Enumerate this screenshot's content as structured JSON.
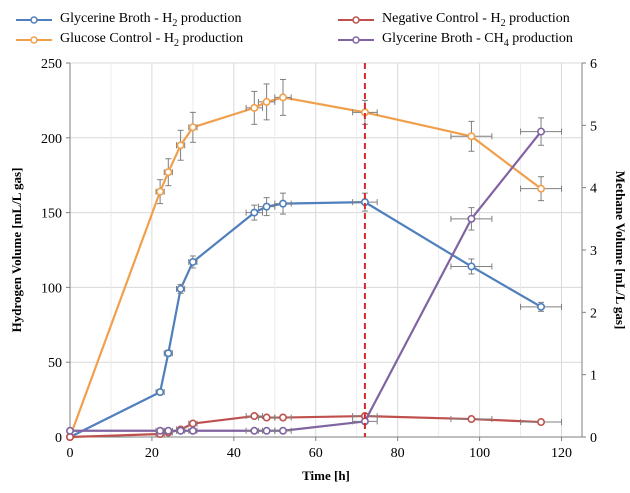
{
  "chart_data": {
    "type": "line",
    "title": "",
    "xlabel": "Time [h]",
    "ylabel": "Hydrogen Volume [mL/L gas]",
    "y2label": "Methane Volume [mL/L gas]",
    "xlim": [
      0,
      125
    ],
    "ylim": [
      0,
      250
    ],
    "y2lim": [
      0,
      6
    ],
    "xticks": [
      0,
      20,
      40,
      60,
      80,
      100,
      120
    ],
    "yticks": [
      0,
      50,
      100,
      150,
      200,
      250
    ],
    "y2ticks": [
      0,
      1,
      2,
      3,
      4,
      5,
      6
    ],
    "grid": true,
    "legend_position": "top",
    "vertical_line": {
      "x": 72,
      "color": "#d42a2a",
      "style": "dashed"
    },
    "series": [
      {
        "name": "Glycerine Broth - H2 production",
        "legend_main": "Glycerine Broth - H",
        "legend_sub": "2",
        "legend_tail": " production",
        "axis": "left",
        "color": "#4f7fbd",
        "x": [
          0,
          22,
          24,
          27,
          30,
          45,
          48,
          52,
          72,
          98,
          115
        ],
        "y": [
          0,
          30,
          56,
          99,
          117,
          150,
          154,
          156,
          157,
          114,
          87
        ],
        "err": [
          0,
          1,
          2,
          3,
          4,
          5,
          6,
          7,
          6,
          5,
          3
        ],
        "xerr": [
          0,
          1,
          1,
          1,
          1,
          2,
          2,
          2,
          3,
          5,
          5
        ]
      },
      {
        "name": "Glucose Control - H2 production",
        "legend_main": "Glucose Control - H",
        "legend_sub": "2",
        "legend_tail": " production",
        "axis": "left",
        "color": "#f0a04c",
        "x": [
          0,
          22,
          24,
          27,
          30,
          45,
          48,
          52,
          72,
          98,
          115
        ],
        "y": [
          0,
          164,
          177,
          195,
          207,
          220,
          224,
          227,
          217,
          201,
          166
        ],
        "err": [
          0,
          8,
          9,
          10,
          10,
          11,
          12,
          12,
          8,
          10,
          8
        ],
        "xerr": [
          0,
          1,
          1,
          1,
          1,
          2,
          2,
          2,
          3,
          5,
          5
        ]
      },
      {
        "name": "Negative Control - H2 production",
        "legend_main": "Negative Control -  H",
        "legend_sub": "2",
        "legend_tail": " production",
        "axis": "left",
        "color": "#c0504d",
        "x": [
          0,
          22,
          24,
          27,
          30,
          45,
          48,
          52,
          72,
          98,
          115
        ],
        "y": [
          0,
          2,
          3,
          5,
          9,
          14,
          13,
          13,
          14,
          12,
          10
        ],
        "err": [
          0,
          1,
          1,
          1,
          1,
          1,
          1,
          1,
          1,
          1,
          1
        ],
        "xerr": [
          0,
          1,
          1,
          1,
          1,
          2,
          2,
          2,
          3,
          5,
          5
        ]
      },
      {
        "name": "Glycerine Broth - CH4 production",
        "legend_main": "Glycerine Broth - CH",
        "legend_sub": "4",
        "legend_tail": " production",
        "axis": "right",
        "color": "#8064a2",
        "x": [
          0,
          22,
          24,
          27,
          30,
          45,
          48,
          52,
          72,
          98,
          115
        ],
        "y": [
          0.1,
          0.1,
          0.1,
          0.1,
          0.1,
          0.1,
          0.1,
          0.1,
          0.25,
          3.5,
          4.9
        ],
        "err": [
          0,
          0,
          0,
          0,
          0,
          0,
          0,
          0,
          0,
          0.18,
          0.22
        ],
        "xerr": [
          0,
          1,
          1,
          1,
          1,
          2,
          2,
          2,
          3,
          5,
          5
        ]
      }
    ]
  }
}
